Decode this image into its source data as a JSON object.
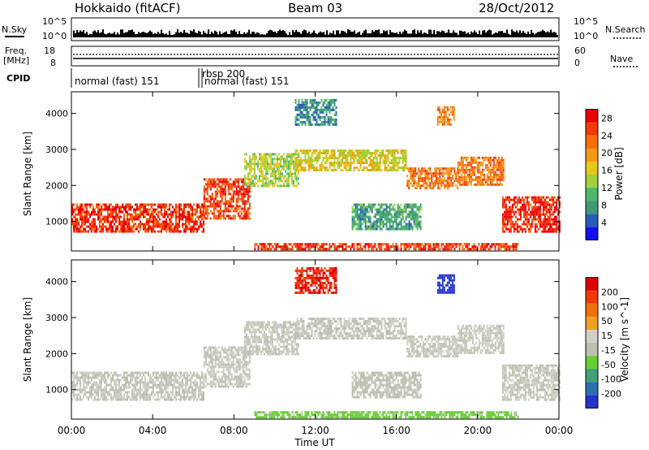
{
  "header": {
    "station": "Hokkaido (fitACF)",
    "beam": "Beam 03",
    "date": "28/Oct/2012"
  },
  "labels": {
    "n_sky": "N.Sky",
    "n_search": "N.Search",
    "freq_top": "Freq.",
    "freq_unit": "[MHz]",
    "nave": "Nave",
    "cpid": "CPID",
    "n_left_top": "10^5",
    "n_left_bot": "10^0",
    "n_right_top": "10^5",
    "n_right_bot": "10^0",
    "freq_left_top": "18",
    "freq_left_bot": "8",
    "nave_right_top": "60",
    "nave_right_bot": "0"
  },
  "cpid_modes": [
    {
      "label": "normal (fast) 151",
      "start_hour": 0.0
    },
    {
      "label": "rbsp 200",
      "start_hour": 6.2
    },
    {
      "label": "normal (fast) 151",
      "start_hour": 6.25
    }
  ],
  "colors": {
    "power_scale": [
      "#1111ee",
      "#2a5db8",
      "#3f9a78",
      "#4cb86a",
      "#9ed13a",
      "#e6c71c",
      "#f39a12",
      "#f66e0c",
      "#f33a08",
      "#e80000"
    ],
    "velocity_scale": [
      "#2233cc",
      "#2d6fb0",
      "#3fa07a",
      "#66cc33",
      "#bfbfb0",
      "#d0d0c8",
      "#f0a020",
      "#f07010",
      "#ee3a08",
      "#dd0000"
    ],
    "background": "#ffffff"
  },
  "chart_data": [
    {
      "type": "heatmap",
      "title": "Power",
      "xlabel": "Time UT",
      "ylabel": "Slant Range [km]",
      "x_ticks": [
        "00:00",
        "04:00",
        "08:00",
        "12:00",
        "16:00",
        "20:00",
        "00:00"
      ],
      "y_ticks": [
        "1000",
        "2000",
        "3000",
        "4000"
      ],
      "xlim_hours": [
        0,
        24
      ],
      "ylim_km": [
        180,
        4600
      ],
      "colorbar": {
        "label": "Power [dB]",
        "ticks": [
          "4",
          "8",
          "12",
          "16",
          "20",
          "24",
          "28"
        ],
        "range": [
          0,
          30
        ]
      },
      "echo_regions": [
        {
          "t0": 0.0,
          "t1": 6.5,
          "r0": 700,
          "r1": 1500,
          "value": 26
        },
        {
          "t0": 6.5,
          "t1": 8.8,
          "r0": 1100,
          "r1": 2200,
          "value": 25
        },
        {
          "t0": 8.5,
          "t1": 11.2,
          "r0": 2000,
          "r1": 2900,
          "value": 14
        },
        {
          "t0": 11.0,
          "t1": 16.5,
          "r0": 2400,
          "r1": 3000,
          "value": 16
        },
        {
          "t0": 16.5,
          "t1": 19.0,
          "r0": 1900,
          "r1": 2500,
          "value": 22
        },
        {
          "t0": 19.0,
          "t1": 21.3,
          "r0": 2000,
          "r1": 2800,
          "value": 22
        },
        {
          "t0": 21.2,
          "t1": 24.0,
          "r0": 700,
          "r1": 1700,
          "value": 27
        },
        {
          "t0": 13.8,
          "t1": 17.2,
          "r0": 800,
          "r1": 1500,
          "value": 9
        },
        {
          "t0": 11.0,
          "t1": 13.0,
          "r0": 3700,
          "r1": 4400,
          "value": 7
        },
        {
          "t0": 18.0,
          "t1": 18.8,
          "r0": 3700,
          "r1": 4200,
          "value": 22
        },
        {
          "t0": 9.0,
          "t1": 22.0,
          "r0": 200,
          "r1": 400,
          "value": 26
        }
      ]
    },
    {
      "type": "heatmap",
      "title": "Velocity",
      "xlabel": "Time UT",
      "ylabel": "Slant Range [km]",
      "x_ticks": [
        "00:00",
        "04:00",
        "08:00",
        "12:00",
        "16:00",
        "20:00",
        "00:00"
      ],
      "y_ticks": [
        "1000",
        "2000",
        "3000",
        "4000"
      ],
      "xlim_hours": [
        0,
        24
      ],
      "ylim_km": [
        180,
        4600
      ],
      "colorbar": {
        "label": "Velocity [m s^-1]",
        "ticks": [
          "200",
          "100",
          "50",
          "15",
          "-15",
          "-50",
          "-100",
          "-200"
        ],
        "range": [
          -250,
          250
        ]
      },
      "echo_regions": [
        {
          "t0": 0.0,
          "t1": 6.5,
          "r0": 700,
          "r1": 1500,
          "value": 0
        },
        {
          "t0": 6.5,
          "t1": 8.8,
          "r0": 1100,
          "r1": 2200,
          "value": 0
        },
        {
          "t0": 8.5,
          "t1": 11.2,
          "r0": 2000,
          "r1": 2900,
          "value": 0
        },
        {
          "t0": 11.0,
          "t1": 16.5,
          "r0": 2400,
          "r1": 3000,
          "value": 0
        },
        {
          "t0": 16.5,
          "t1": 19.0,
          "r0": 1900,
          "r1": 2500,
          "value": 0
        },
        {
          "t0": 19.0,
          "t1": 21.3,
          "r0": 2000,
          "r1": 2800,
          "value": 0
        },
        {
          "t0": 21.2,
          "t1": 24.0,
          "r0": 700,
          "r1": 1700,
          "value": 0
        },
        {
          "t0": 13.8,
          "t1": 17.2,
          "r0": 800,
          "r1": 1500,
          "value": -10
        },
        {
          "t0": 11.0,
          "t1": 13.0,
          "r0": 3700,
          "r1": 4400,
          "value": 200
        },
        {
          "t0": 18.0,
          "t1": 18.8,
          "r0": 3700,
          "r1": 4200,
          "value": -220
        },
        {
          "t0": 9.0,
          "t1": 22.0,
          "r0": 200,
          "r1": 400,
          "value": -60
        }
      ]
    }
  ]
}
